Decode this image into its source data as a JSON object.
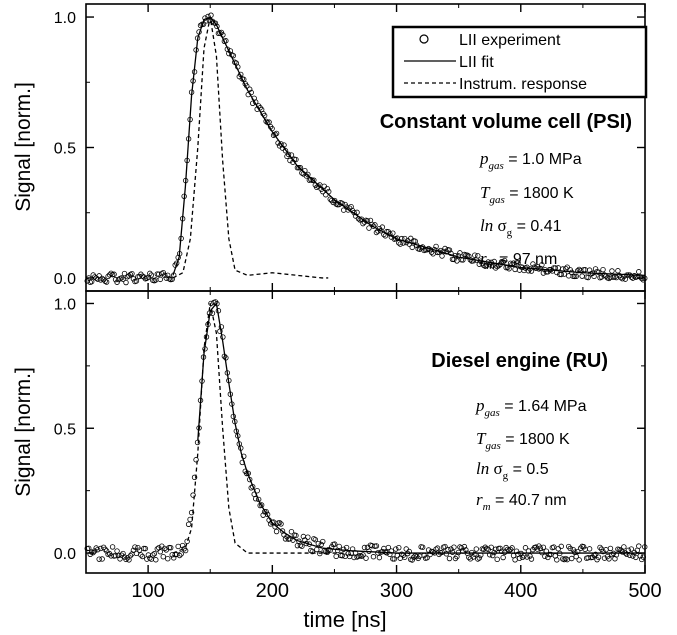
{
  "chart_data": [
    {
      "type": "scatter",
      "panel": "top",
      "title": "Constant volume cell (PSI)",
      "ylabel": "Signal [norm.]",
      "xlim": [
        50,
        500
      ],
      "ylim": [
        -0.05,
        1.05
      ],
      "yticks": [
        0.0,
        0.5,
        1.0
      ],
      "ytick_labels": [
        "0.0",
        "0.5",
        "1.0"
      ],
      "legend": {
        "placement": "top-right",
        "entries": [
          "LII experiment",
          "LII fit",
          "Instrum. response"
        ]
      },
      "params": [
        {
          "sym": "p",
          "sub": "gas",
          "text": " = 1.0 MPa"
        },
        {
          "sym": "T",
          "sub": "gas",
          "text": " = 1800 K"
        },
        {
          "sym": "ln",
          "sub": "g",
          "text": " = 0.41",
          "sigma": "σ"
        },
        {
          "sym": "r",
          "sub": "m",
          "text": " = 97 nm"
        }
      ],
      "series": [
        {
          "name": "LII experiment",
          "style": "open-circles",
          "x": [
            50,
            100,
            120,
            125,
            130,
            135,
            140,
            145,
            150,
            155,
            160,
            170,
            180,
            200,
            220,
            250,
            280,
            300,
            350,
            400,
            450,
            500
          ],
          "y": [
            0.0,
            0.0,
            0.01,
            0.08,
            0.35,
            0.7,
            0.92,
            0.99,
            1.0,
            0.97,
            0.92,
            0.82,
            0.72,
            0.56,
            0.43,
            0.3,
            0.2,
            0.15,
            0.08,
            0.04,
            0.02,
            0.01
          ]
        },
        {
          "name": "LII fit",
          "style": "solid",
          "x": [
            120,
            125,
            130,
            135,
            140,
            145,
            150,
            155,
            160,
            170,
            180,
            200,
            220,
            250,
            280,
            300,
            350,
            400,
            450,
            500
          ],
          "y": [
            0.01,
            0.08,
            0.35,
            0.7,
            0.92,
            0.99,
            1.0,
            0.97,
            0.92,
            0.82,
            0.72,
            0.56,
            0.43,
            0.3,
            0.2,
            0.15,
            0.08,
            0.04,
            0.02,
            0.01
          ]
        },
        {
          "name": "Instrum. response",
          "style": "dashed",
          "x": [
            120,
            128,
            134,
            140,
            145,
            150,
            155,
            160,
            165,
            170,
            180,
            200,
            220,
            240,
            245
          ],
          "y": [
            0.0,
            0.02,
            0.15,
            0.5,
            0.88,
            1.0,
            0.85,
            0.45,
            0.15,
            0.03,
            0.01,
            0.02,
            0.01,
            0.0,
            0.0
          ]
        }
      ]
    },
    {
      "type": "scatter",
      "panel": "bottom",
      "title": "Diesel engine (RU)",
      "xlabel": "time [ns]",
      "ylabel": "Signal [norm.]",
      "xlim": [
        50,
        500
      ],
      "ylim": [
        -0.08,
        1.05
      ],
      "xticks": [
        100,
        200,
        300,
        400,
        500
      ],
      "xtick_labels": [
        "100",
        "200",
        "300",
        "400",
        "500"
      ],
      "yticks": [
        0.0,
        0.5,
        1.0
      ],
      "ytick_labels": [
        "0.0",
        "0.5",
        "1.0"
      ],
      "params": [
        {
          "sym": "p",
          "sub": "gas",
          "text": " = 1.64 MPa"
        },
        {
          "sym": "T",
          "sub": "gas",
          "text": " = 1800 K"
        },
        {
          "sym": "ln",
          "sub": "g",
          "text": " = 0.5",
          "sigma": "σ"
        },
        {
          "sym": "r",
          "sub": "m",
          "text": " = 40.7 nm"
        }
      ],
      "series": [
        {
          "name": "LII experiment",
          "style": "open-circles",
          "x": [
            50,
            100,
            120,
            130,
            135,
            140,
            145,
            150,
            155,
            160,
            165,
            170,
            175,
            180,
            190,
            200,
            210,
            220,
            240,
            260,
            300,
            350,
            400,
            450,
            500
          ],
          "y": [
            0.0,
            0.0,
            0.0,
            0.03,
            0.15,
            0.45,
            0.8,
            0.97,
            1.0,
            0.85,
            0.68,
            0.52,
            0.4,
            0.32,
            0.2,
            0.12,
            0.08,
            0.05,
            0.02,
            0.01,
            0.0,
            0.0,
            0.0,
            0.0,
            0.0
          ]
        },
        {
          "name": "LII fit",
          "style": "solid",
          "x": [
            140,
            145,
            150,
            155,
            160,
            165,
            170,
            175,
            180,
            190,
            200,
            210,
            220,
            240,
            260,
            300,
            350,
            400,
            450,
            500
          ],
          "y": [
            0.45,
            0.8,
            0.97,
            1.0,
            0.85,
            0.68,
            0.52,
            0.4,
            0.32,
            0.2,
            0.12,
            0.08,
            0.05,
            0.02,
            0.01,
            0.0,
            0.0,
            0.0,
            0.0,
            0.0
          ]
        },
        {
          "name": "Instrum. response",
          "style": "dashed",
          "x": [
            120,
            130,
            135,
            140,
            145,
            150,
            155,
            160,
            165,
            170,
            180,
            200,
            220,
            240,
            260
          ],
          "y": [
            0.0,
            0.02,
            0.1,
            0.4,
            0.82,
            1.0,
            0.88,
            0.5,
            0.18,
            0.04,
            0.0,
            0.0,
            0.0,
            0.0,
            0.0
          ]
        }
      ]
    }
  ]
}
